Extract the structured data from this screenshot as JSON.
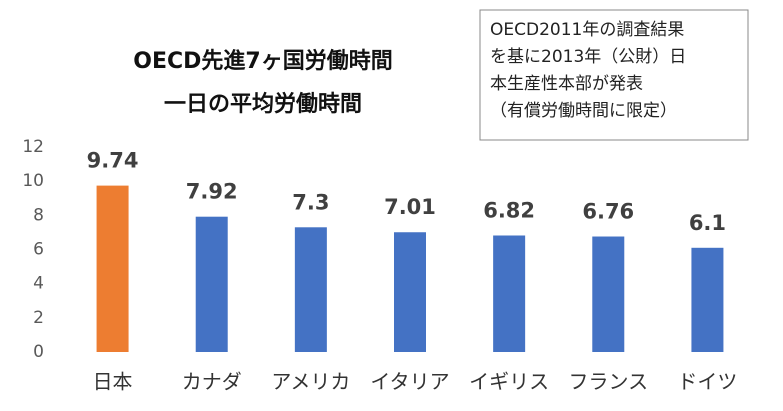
{
  "chart_data": {
    "type": "bar",
    "title": [
      "OECD先進7ヶ国労働時間",
      "一日の平均労働時間"
    ],
    "annotation": [
      "OECD2011年の調査結果",
      "を基に2013年（公財）日",
      "本生産性本部が発表",
      "（有償労働時間に限定）"
    ],
    "categories": [
      "日本",
      "カナダ",
      "アメリカ",
      "イタリア",
      "イギリス",
      "フランス",
      "ドイツ"
    ],
    "values": [
      9.74,
      7.92,
      7.3,
      7.01,
      6.82,
      6.76,
      6.1
    ],
    "colors": [
      "#ed7d31",
      "#4472c4",
      "#4472c4",
      "#4472c4",
      "#4472c4",
      "#4472c4",
      "#4472c4"
    ],
    "ylim": [
      0,
      12
    ],
    "yticks": [
      0,
      2,
      4,
      6,
      8,
      10,
      12
    ],
    "grid": false
  }
}
